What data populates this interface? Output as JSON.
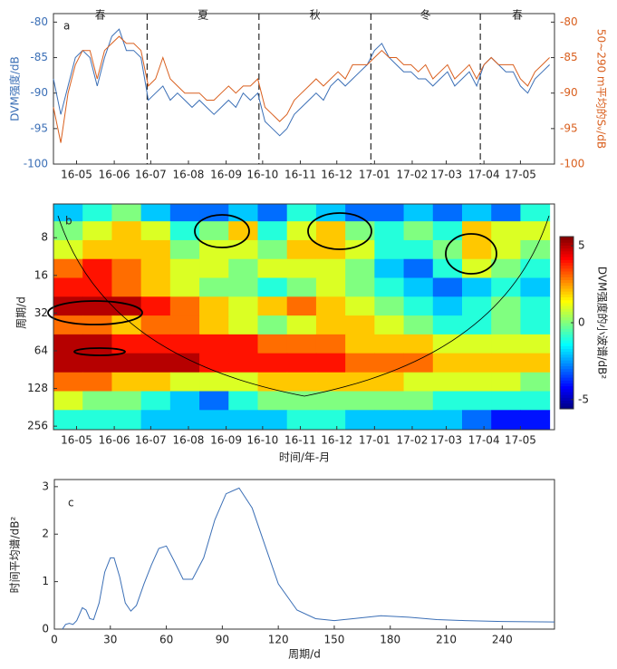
{
  "chart_data": [
    {
      "type": "line",
      "panel_label": "a",
      "x": [
        0,
        6,
        12,
        18,
        24,
        30,
        36,
        42,
        48,
        54,
        60,
        66,
        72,
        78,
        84,
        90,
        96,
        102,
        108,
        114,
        120,
        126,
        132,
        138,
        144,
        150,
        156,
        162,
        168,
        174,
        180,
        186,
        192,
        198,
        204,
        210,
        216,
        222,
        228,
        234,
        240,
        246,
        252,
        258,
        264,
        270,
        276,
        282,
        288,
        294,
        300,
        306,
        312,
        318,
        324,
        330,
        336,
        342,
        348,
        354,
        360,
        366,
        372,
        378,
        384,
        390,
        396,
        402,
        408
      ],
      "xlim": [
        0,
        412
      ],
      "xticks": [
        {
          "value": 19,
          "label": "16-05"
        },
        {
          "value": 50,
          "label": "16-06"
        },
        {
          "value": 80,
          "label": "16-07"
        },
        {
          "value": 111,
          "label": "16-08"
        },
        {
          "value": 142,
          "label": "16-09"
        },
        {
          "value": 172,
          "label": "16-10"
        },
        {
          "value": 203,
          "label": "16-11"
        },
        {
          "value": 233,
          "label": "16-12"
        },
        {
          "value": 264,
          "label": "17-01"
        },
        {
          "value": 295,
          "label": "17-02"
        },
        {
          "value": 323,
          "label": "17-03"
        },
        {
          "value": 354,
          "label": "17-04"
        },
        {
          "value": 384,
          "label": "17-05"
        }
      ],
      "ylabel": "DVM强度/dB",
      "ylim": [
        -100,
        -78.8
      ],
      "yticks": [
        -100,
        -95,
        -90,
        -85,
        -80
      ],
      "y2label": "50~290 m平均的Sᵥ/dB",
      "y2lim": [
        -100,
        -78.8
      ],
      "y2ticks": [
        -100,
        -95,
        -90,
        -85,
        -80
      ],
      "season_boundaries": [
        77,
        169,
        261,
        351
      ],
      "season_labels": [
        "春",
        "夏",
        "秋",
        "冬",
        "春"
      ],
      "series": [
        {
          "name": "DVM强度",
          "color": "#3b6fb6",
          "values": [
            -88,
            -93,
            -89,
            -85,
            -84,
            -85,
            -89,
            -85,
            -82,
            -81,
            -84,
            -84,
            -85,
            -91,
            -90,
            -89,
            -91,
            -90,
            -91,
            -92,
            -91,
            -92,
            -93,
            -92,
            -91,
            -92,
            -90,
            -91,
            -90,
            -94,
            -95,
            -96,
            -95,
            -93,
            -92,
            -91,
            -90,
            -91,
            -89,
            -88,
            -89,
            -88,
            -87,
            -86,
            -84,
            -83,
            -85,
            -86,
            -87,
            -87,
            -88,
            -88,
            -89,
            -88,
            -87,
            -89,
            -88,
            -87,
            -89,
            -86,
            -85,
            -86,
            -87,
            -87,
            -89,
            -90,
            -88,
            -87,
            -86
          ]
        },
        {
          "name": "Sᵥ",
          "color": "#d95f1e",
          "axis": "y2",
          "values": [
            -92,
            -97,
            -90,
            -86,
            -84,
            -84,
            -88,
            -84,
            -83,
            -82,
            -83,
            -83,
            -84,
            -89,
            -88,
            -85,
            -88,
            -89,
            -90,
            -90,
            -90,
            -91,
            -91,
            -90,
            -89,
            -90,
            -89,
            -89,
            -88,
            -92,
            -93,
            -94,
            -93,
            -91,
            -90,
            -89,
            -88,
            -89,
            -88,
            -87,
            -88,
            -86,
            -86,
            -86,
            -85,
            -84,
            -85,
            -85,
            -86,
            -86,
            -87,
            -86,
            -88,
            -87,
            -86,
            -88,
            -87,
            -86,
            -88,
            -86,
            -85,
            -86,
            -86,
            -86,
            -88,
            -89,
            -87,
            -86,
            -85
          ]
        }
      ]
    },
    {
      "type": "heatmap",
      "panel_label": "b",
      "x": [
        12,
        36,
        60,
        84,
        108,
        132,
        156,
        180,
        204,
        228,
        252,
        276,
        300,
        324,
        348,
        372,
        396
      ],
      "xlim": [
        0,
        412
      ],
      "xticks": [
        {
          "value": 19,
          "label": "16-05"
        },
        {
          "value": 50,
          "label": "16-06"
        },
        {
          "value": 80,
          "label": "16-07"
        },
        {
          "value": 111,
          "label": "16-08"
        },
        {
          "value": 142,
          "label": "16-09"
        },
        {
          "value": 172,
          "label": "16-10"
        },
        {
          "value": 203,
          "label": "16-11"
        },
        {
          "value": 233,
          "label": "16-12"
        },
        {
          "value": 264,
          "label": "17-01"
        },
        {
          "value": 295,
          "label": "17-02"
        },
        {
          "value": 323,
          "label": "17-03"
        },
        {
          "value": 354,
          "label": "17-04"
        },
        {
          "value": 384,
          "label": "17-05"
        }
      ],
      "xlabel": "时间/年-月",
      "y": [
        5,
        7,
        10,
        14,
        20,
        28,
        40,
        56,
        80,
        113,
        160,
        226
      ],
      "ylabel": "周期/d",
      "ylim": [
        4.3,
        273
      ],
      "ylog": true,
      "yticks": [
        8,
        16,
        32,
        64,
        128,
        256
      ],
      "z": [
        [
          -2,
          -1,
          0,
          -2,
          -3,
          -3,
          -2,
          -3,
          -1,
          -2,
          -3,
          -3,
          -2,
          -3,
          -2,
          -3,
          -1
        ],
        [
          0,
          1,
          2,
          1,
          -1,
          0,
          2,
          -1,
          1,
          2,
          0,
          -1,
          0,
          -1,
          2,
          1,
          1
        ],
        [
          1,
          2,
          2,
          2,
          0,
          1,
          1,
          0,
          2,
          2,
          1,
          -1,
          -1,
          0,
          2,
          1,
          0
        ],
        [
          3,
          4,
          3,
          2,
          1,
          1,
          0,
          1,
          1,
          1,
          0,
          -2,
          -3,
          -1,
          1,
          0,
          -1
        ],
        [
          4,
          4,
          3,
          2,
          1,
          0,
          0,
          -1,
          0,
          1,
          0,
          -1,
          -2,
          -3,
          -2,
          -1,
          -2
        ],
        [
          5,
          5,
          5,
          4,
          3,
          2,
          1,
          2,
          3,
          2,
          1,
          0,
          -1,
          -2,
          -1,
          0,
          -1
        ],
        [
          3,
          3,
          2,
          3,
          3,
          2,
          1,
          0,
          1,
          2,
          2,
          1,
          0,
          -1,
          -1,
          0,
          -1
        ],
        [
          5,
          5,
          4,
          4,
          4,
          4,
          4,
          3,
          3,
          3,
          2,
          2,
          2,
          1,
          1,
          1,
          1
        ],
        [
          5,
          5,
          5,
          5,
          5,
          4,
          4,
          4,
          4,
          4,
          3,
          3,
          3,
          2,
          2,
          2,
          2
        ],
        [
          3,
          3,
          2,
          2,
          1,
          1,
          1,
          2,
          2,
          2,
          2,
          2,
          1,
          1,
          1,
          1,
          0
        ],
        [
          1,
          0,
          0,
          -1,
          -2,
          -3,
          -1,
          0,
          0,
          0,
          0,
          0,
          0,
          -1,
          -1,
          -1,
          -1
        ],
        [
          -1,
          -1,
          -1,
          -2,
          -2,
          -2,
          -2,
          -2,
          -1,
          -1,
          -2,
          -2,
          -2,
          -2,
          -3,
          -4,
          -4
        ]
      ],
      "colormap": "jet",
      "clim": [
        -5.6,
        5.6
      ],
      "cticks": [
        5,
        0,
        -5
      ],
      "clabel": "DVM强度的小波谱/dB²"
    },
    {
      "type": "line",
      "panel_label": "c",
      "x": [
        4.3,
        6,
        8,
        10,
        12,
        15,
        17,
        19,
        21,
        24,
        27,
        30,
        32,
        35,
        38,
        41,
        44,
        48,
        52,
        56,
        60,
        64,
        69,
        74,
        80,
        86,
        92,
        99,
        106,
        113,
        120,
        130,
        140,
        150,
        160,
        175,
        190,
        205,
        220,
        240,
        268
      ],
      "values": [
        0,
        0.1,
        0.12,
        0.1,
        0.18,
        0.45,
        0.4,
        0.22,
        0.2,
        0.55,
        1.2,
        1.5,
        1.5,
        1.1,
        0.55,
        0.38,
        0.5,
        0.95,
        1.35,
        1.7,
        1.75,
        1.45,
        1.05,
        1.05,
        1.5,
        2.3,
        2.85,
        2.97,
        2.55,
        1.75,
        0.95,
        0.4,
        0.22,
        0.18,
        0.22,
        0.28,
        0.25,
        0.2,
        0.18,
        0.16,
        0.15
      ],
      "color": "#3b6fb6",
      "xlabel": "周期/d",
      "xlim": [
        0,
        268
      ],
      "xticks": [
        0,
        30,
        60,
        90,
        120,
        150,
        180,
        210,
        240
      ],
      "ylabel": "时间平均谱/dB²",
      "ylim": [
        0,
        3.15
      ],
      "yticks": [
        0,
        1,
        2,
        3
      ]
    }
  ]
}
